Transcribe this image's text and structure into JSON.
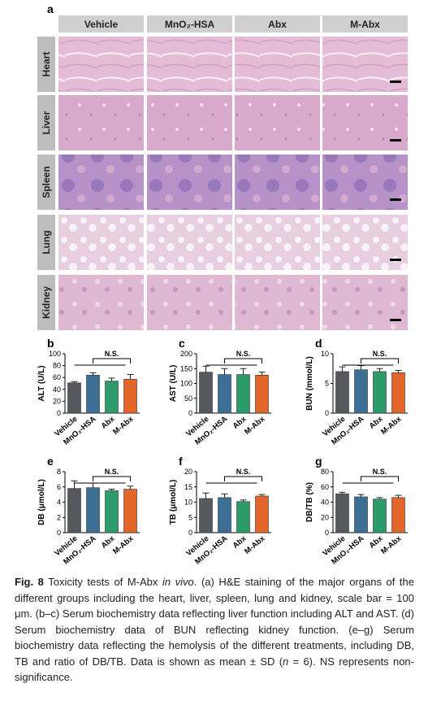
{
  "panel_a": {
    "panel": "a",
    "columns": [
      "Vehicle",
      "MnO₂-HSA",
      "Abx",
      "M-Abx"
    ],
    "rows": [
      "Heart",
      "Liver",
      "Spleen",
      "Lung",
      "Kidney"
    ]
  },
  "chart_data": [
    {
      "type": "bar",
      "panel": "b",
      "ylabel": "ALT (U/L)",
      "categories": [
        "Vehicle",
        "MnO₂-HSA",
        "Abx",
        "M-Abx"
      ],
      "values": [
        51,
        64,
        54,
        57
      ],
      "errors": [
        2,
        4,
        5,
        8
      ],
      "colors": [
        "#55595d",
        "#3d6f95",
        "#2d9a6a",
        "#e2662a"
      ],
      "ylim": [
        0,
        100
      ],
      "yticks": [
        0,
        20,
        40,
        60,
        80,
        100
      ],
      "annotation": "N.S."
    },
    {
      "type": "bar",
      "panel": "c",
      "ylabel": "AST (U/L)",
      "categories": [
        "Vehicle",
        "MnO₂-HSA",
        "Abx",
        "M-Abx"
      ],
      "values": [
        138,
        130,
        130,
        128
      ],
      "errors": [
        20,
        20,
        20,
        10
      ],
      "colors": [
        "#55595d",
        "#3d6f95",
        "#2d9a6a",
        "#e2662a"
      ],
      "ylim": [
        0,
        200
      ],
      "yticks": [
        0,
        50,
        100,
        150,
        200
      ],
      "annotation": "N.S."
    },
    {
      "type": "bar",
      "panel": "d",
      "ylabel": "BUN (mmol/L)",
      "categories": [
        "Vehicle",
        "MnO₂-HSA",
        "Abx",
        "M-Abx"
      ],
      "values": [
        7.0,
        7.3,
        7.0,
        6.8
      ],
      "errors": [
        0.8,
        0.7,
        0.5,
        0.4
      ],
      "colors": [
        "#55595d",
        "#3d6f95",
        "#2d9a6a",
        "#e2662a"
      ],
      "ylim": [
        0,
        10
      ],
      "yticks": [
        0,
        5,
        10
      ],
      "annotation": "N.S."
    },
    {
      "type": "bar",
      "panel": "e",
      "ylabel": "DB (μmol/L)",
      "categories": [
        "Vehicle",
        "MnO₂-HSA",
        "Abx",
        "M-Abx"
      ],
      "values": [
        5.8,
        5.9,
        5.5,
        5.7
      ],
      "errors": [
        1.0,
        0.6,
        0.2,
        0.4
      ],
      "colors": [
        "#55595d",
        "#3d6f95",
        "#2d9a6a",
        "#e2662a"
      ],
      "ylim": [
        0,
        8
      ],
      "yticks": [
        0,
        2,
        4,
        6,
        8
      ],
      "annotation": "N.S."
    },
    {
      "type": "bar",
      "panel": "f",
      "ylabel": "TB (μmol/L)",
      "categories": [
        "Vehicle",
        "MnO₂-HSA",
        "Abx",
        "M-Abx"
      ],
      "values": [
        11.2,
        11.5,
        10.2,
        12.0
      ],
      "errors": [
        1.8,
        1.2,
        0.5,
        0.5
      ],
      "colors": [
        "#55595d",
        "#3d6f95",
        "#2d9a6a",
        "#e2662a"
      ],
      "ylim": [
        0,
        20
      ],
      "yticks": [
        0,
        5,
        10,
        15,
        20
      ],
      "annotation": "N.S."
    },
    {
      "type": "bar",
      "panel": "g",
      "ylabel": "DB/TB (%)",
      "categories": [
        "Vehicle",
        "MnO₂-HSA",
        "Abx",
        "M-Abx"
      ],
      "values": [
        51,
        47,
        44,
        46
      ],
      "errors": [
        2,
        3,
        2,
        3
      ],
      "colors": [
        "#55595d",
        "#3d6f95",
        "#2d9a6a",
        "#e2662a"
      ],
      "ylim": [
        0,
        80
      ],
      "yticks": [
        0,
        20,
        40,
        60,
        80
      ],
      "annotation": "N.S."
    }
  ],
  "caption": {
    "label": "Fig. 8",
    "parts": [
      " Toxicity tests of M-Abx ",
      "in vivo",
      ". (a) H&E staining of the major organs of the different groups including the heart, liver, spleen, lung and kidney, scale bar = 100 μm. (b–c) Serum biochemistry data reflecting liver function including ALT and AST. (d) Serum biochemistry data of BUN reflecting kidney function. (e–g) Serum biochemistry data reflecting the hemolysis of the different treatments, including DB, TB and ratio of DB/TB. Data is shown as mean ± SD (",
      "n",
      " = 6). NS represents non-significance."
    ]
  }
}
